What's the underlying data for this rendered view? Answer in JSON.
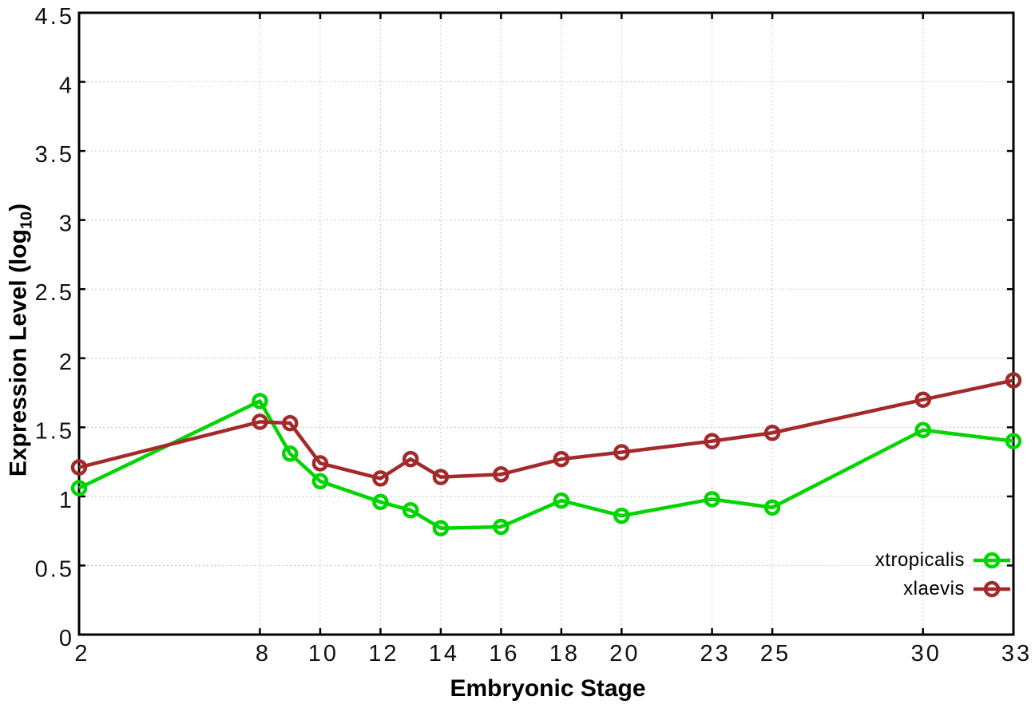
{
  "chart_data": {
    "type": "line",
    "title": "",
    "xlabel": "Embryonic Stage",
    "ylabel": "Expression Level (log10)",
    "ylabel_parts": {
      "prefix": "Expression Level (log",
      "subscript": "10",
      "suffix": ")"
    },
    "x": [
      2,
      8,
      9,
      10,
      12,
      13,
      14,
      16,
      18,
      20,
      23,
      25,
      30,
      33
    ],
    "series": [
      {
        "name": "xtropicalis",
        "color": "#00d500",
        "values": [
          1.06,
          1.69,
          1.31,
          1.11,
          0.96,
          0.9,
          0.77,
          0.78,
          0.97,
          0.86,
          0.98,
          0.92,
          1.48,
          1.4
        ]
      },
      {
        "name": "xlaevis",
        "color": "#a32a2a",
        "values": [
          1.21,
          1.54,
          1.53,
          1.24,
          1.13,
          1.27,
          1.14,
          1.16,
          1.27,
          1.32,
          1.4,
          1.46,
          1.7,
          1.84
        ]
      }
    ],
    "xticks": [
      2,
      8,
      10,
      12,
      14,
      16,
      18,
      20,
      23,
      25,
      30,
      33
    ],
    "yticks": [
      0,
      0.5,
      1,
      1.5,
      2,
      2.5,
      3,
      3.5,
      4,
      4.5
    ],
    "xlim": [
      2,
      33
    ],
    "ylim": [
      0,
      4.5
    ],
    "grid": true,
    "marker": "open-circle",
    "legend_position": "bottom-right-inside"
  }
}
